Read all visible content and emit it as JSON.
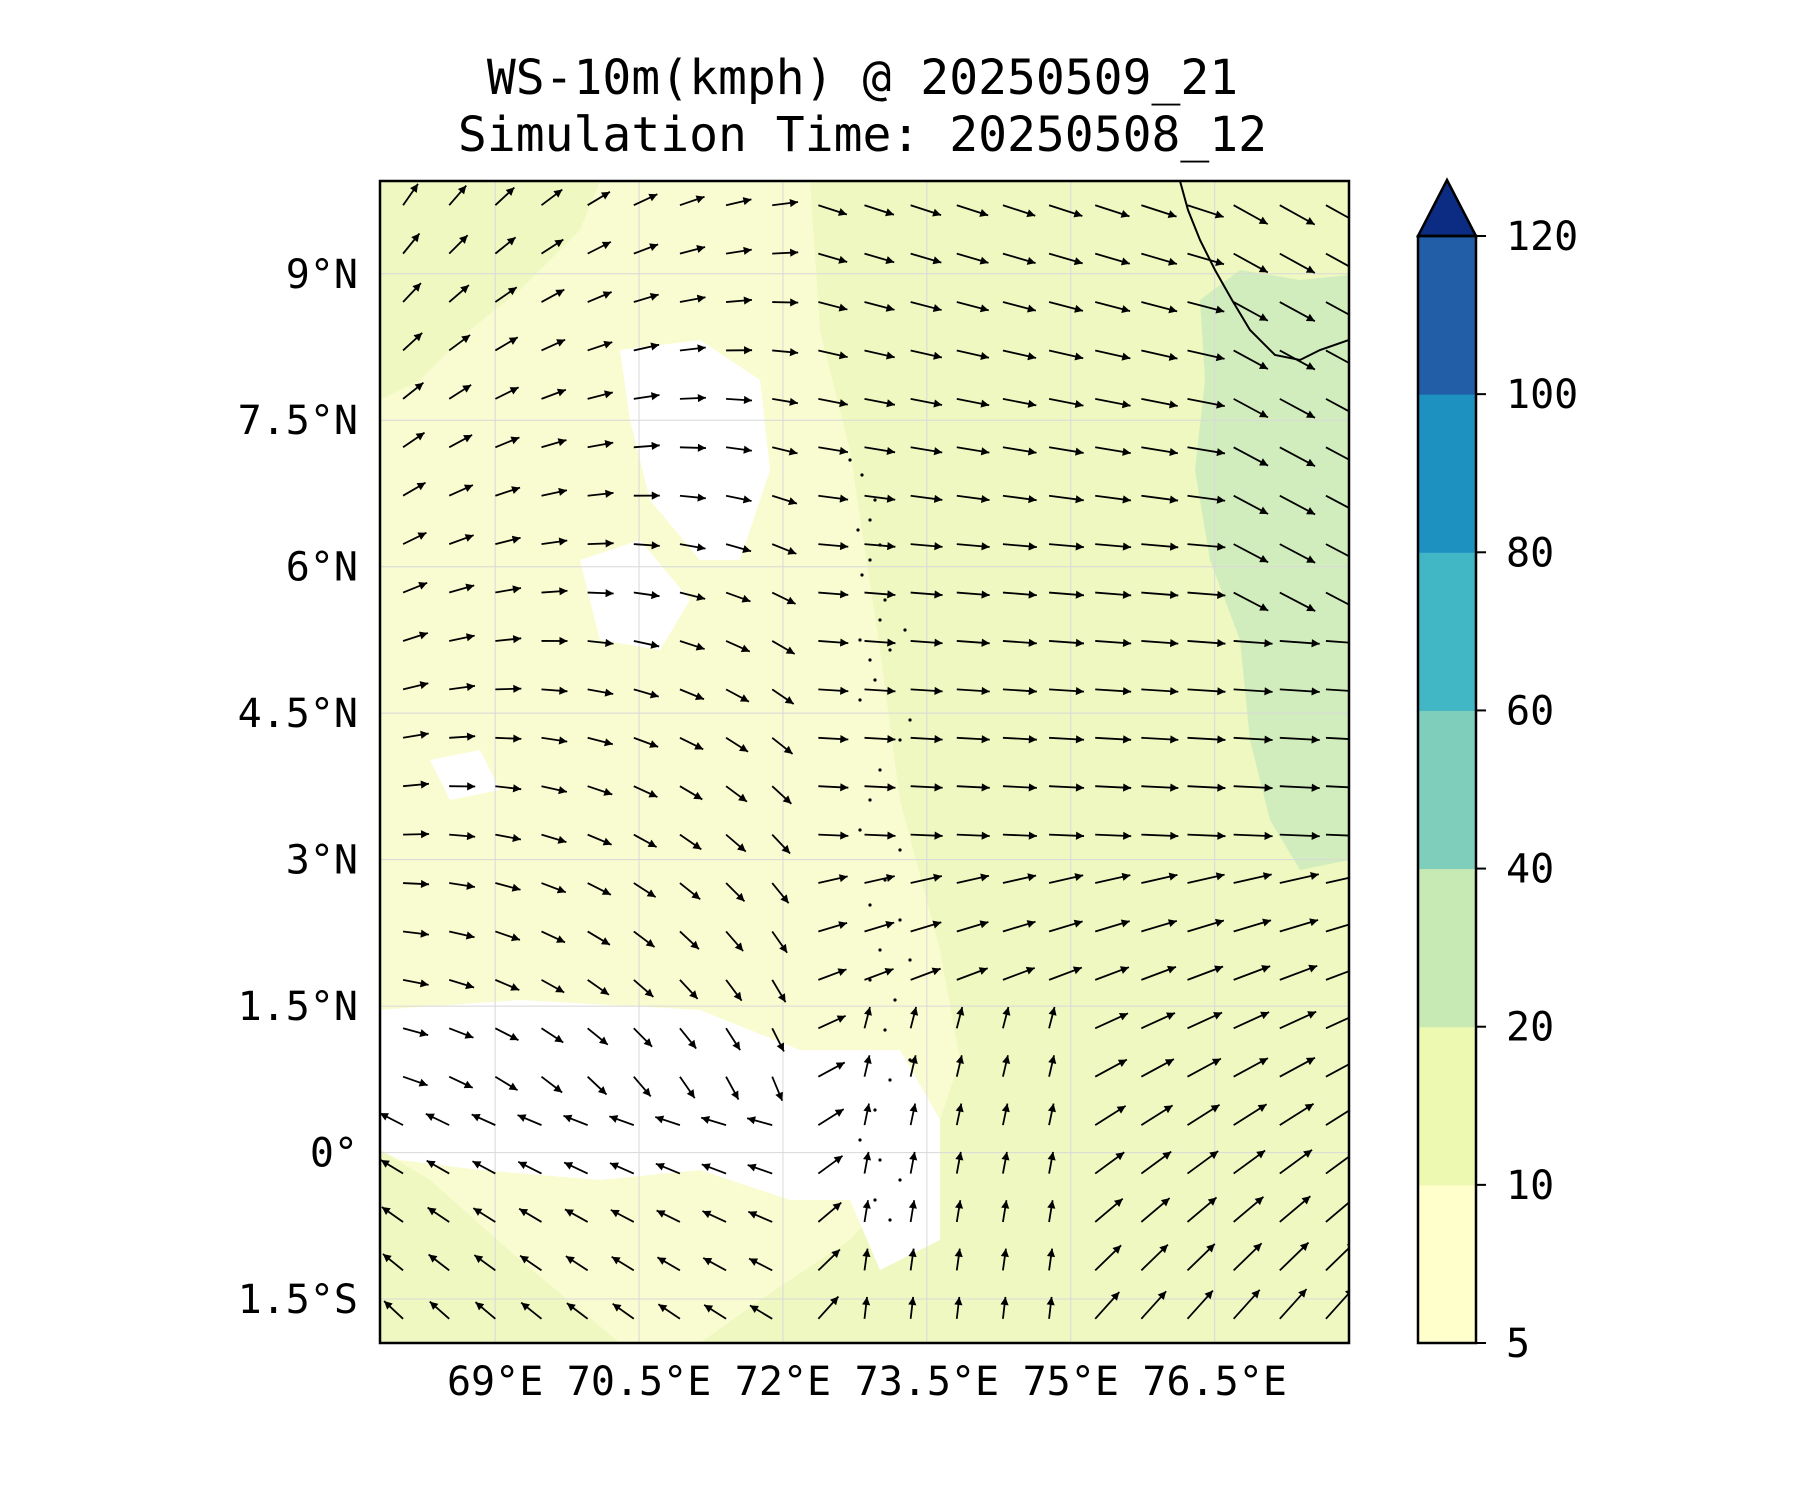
{
  "title": {
    "line1": "WS-10m(kmph) @ 20250509_21",
    "line2": "Simulation Time: 20250508_12"
  },
  "map": {
    "lon_range": [
      67.8,
      77.9
    ],
    "lat_range": [
      -1.95,
      9.95
    ],
    "lon_ticks": [
      {
        "value": 69,
        "label": "69°E"
      },
      {
        "value": 70.5,
        "label": "70.5°E"
      },
      {
        "value": 72,
        "label": "72°E"
      },
      {
        "value": 73.5,
        "label": "73.5°E"
      },
      {
        "value": 75,
        "label": "75°E"
      },
      {
        "value": 76.5,
        "label": "76.5°E"
      }
    ],
    "lat_ticks": [
      {
        "value": 9,
        "label": "9°N"
      },
      {
        "value": 7.5,
        "label": "7.5°N"
      },
      {
        "value": 6,
        "label": "6°N"
      },
      {
        "value": 4.5,
        "label": "4.5°N"
      },
      {
        "value": 3,
        "label": "3°N"
      },
      {
        "value": 1.5,
        "label": "1.5°N"
      },
      {
        "value": 0,
        "label": "0°"
      },
      {
        "value": -1.5,
        "label": "1.5°S"
      }
    ],
    "gridlines": true,
    "wind_field": "quiver"
  },
  "colorbar": {
    "levels": [
      5,
      10,
      20,
      40,
      60,
      80,
      100,
      120
    ],
    "labels": [
      "5",
      "10",
      "20",
      "40",
      "60",
      "80",
      "100",
      "120"
    ],
    "colors": [
      "#ffffcc",
      "#edf8b1",
      "#c7e9b4",
      "#7fcdbb",
      "#41b6c4",
      "#1d91c0",
      "#225ea8",
      "#0c2c84"
    ],
    "extend": "max"
  },
  "colors": {
    "below_min": "#ffffff",
    "band_5_10": "#f9fcd0",
    "band_10_20": "#eff8c0",
    "band_20_40": "#d2edbd",
    "arrow": "#000000"
  }
}
